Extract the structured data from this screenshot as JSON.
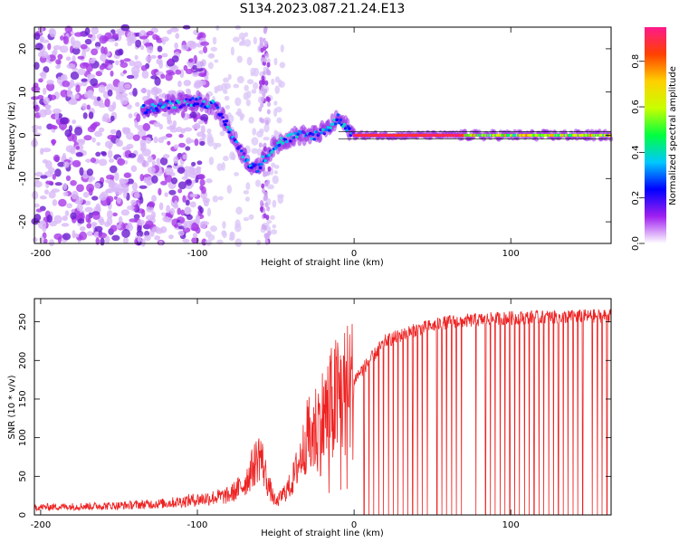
{
  "title": "S134.2023.087.21.24.E13",
  "chart_data": [
    {
      "type": "heatmap",
      "xlabel": "Height of straight line (km)",
      "ylabel": "Frequency (Hz)",
      "xlim": [
        -204,
        164
      ],
      "ylim": [
        -25,
        25
      ],
      "xticks": [
        -200,
        -100,
        0,
        100
      ],
      "yticks": [
        -20,
        -10,
        0,
        10,
        20
      ],
      "colorbar": {
        "label": "Normalized spectral amplitude",
        "range": [
          0,
          0.95
        ],
        "ticks": [
          "0.0",
          "0.2",
          "0.4",
          "0.6",
          "0.8"
        ],
        "colors": [
          "#ffffff",
          "#a020f0",
          "#0000ff",
          "#00c8ff",
          "#00ff40",
          "#c8ff00",
          "#ffd000",
          "#ff4000",
          "#ff1a8c"
        ]
      },
      "ridge": [
        {
          "x": -135,
          "y": 6
        },
        {
          "x": -120,
          "y": 7
        },
        {
          "x": -100,
          "y": 8
        },
        {
          "x": -90,
          "y": 7
        },
        {
          "x": -82,
          "y": 3
        },
        {
          "x": -75,
          "y": -2
        },
        {
          "x": -68,
          "y": -6
        },
        {
          "x": -62,
          "y": -8
        },
        {
          "x": -55,
          "y": -4
        },
        {
          "x": -45,
          "y": -1
        },
        {
          "x": -35,
          "y": 0
        },
        {
          "x": -25,
          "y": 0
        },
        {
          "x": -15,
          "y": 2
        },
        {
          "x": -10,
          "y": 4
        },
        {
          "x": 0,
          "y": 0
        },
        {
          "x": 164,
          "y": 0
        }
      ]
    },
    {
      "type": "line",
      "xlabel": "Height of straight line (km)",
      "ylabel": "SNR (10 * v/v)",
      "xlim": [
        -204,
        164
      ],
      "ylim": [
        0,
        280
      ],
      "xticks": [
        -200,
        -100,
        0,
        100
      ],
      "yticks": [
        0,
        50,
        100,
        150,
        200,
        250
      ],
      "color": "#ee2222",
      "envelope": [
        {
          "x": -204,
          "y": 10
        },
        {
          "x": -150,
          "y": 12
        },
        {
          "x": -120,
          "y": 15
        },
        {
          "x": -100,
          "y": 20
        },
        {
          "x": -80,
          "y": 25
        },
        {
          "x": -70,
          "y": 40
        },
        {
          "x": -60,
          "y": 80
        },
        {
          "x": -55,
          "y": 40
        },
        {
          "x": -50,
          "y": 15
        },
        {
          "x": -40,
          "y": 40
        },
        {
          "x": -30,
          "y": 100
        },
        {
          "x": -20,
          "y": 130
        },
        {
          "x": -10,
          "y": 160
        },
        {
          "x": 0,
          "y": 175
        },
        {
          "x": 10,
          "y": 200
        },
        {
          "x": 20,
          "y": 225
        },
        {
          "x": 40,
          "y": 240
        },
        {
          "x": 60,
          "y": 250
        },
        {
          "x": 100,
          "y": 255
        },
        {
          "x": 164,
          "y": 258
        }
      ]
    }
  ]
}
